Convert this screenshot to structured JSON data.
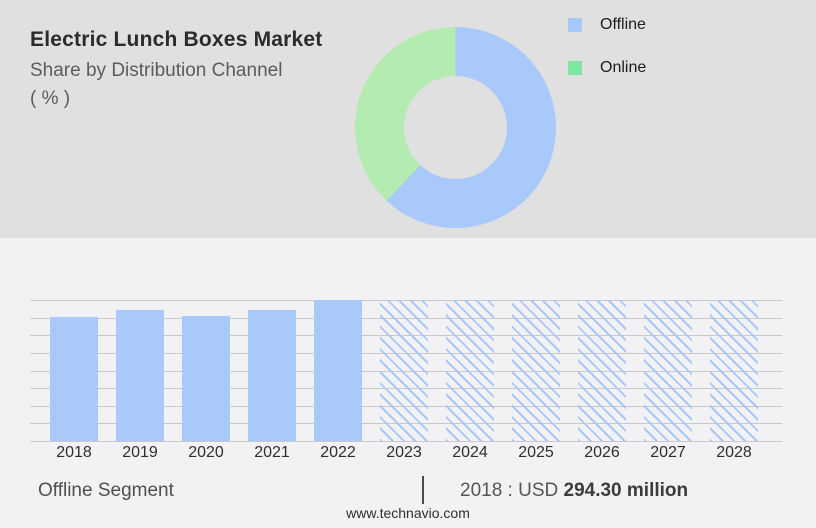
{
  "header": {
    "title": "Electric Lunch Boxes Market",
    "subtitle": "Share by Distribution Channel",
    "subtitle_unit": "( % )"
  },
  "colors": {
    "offline": "#a9c9fb",
    "offline_legend": "#a8c8fb",
    "online_donut": "#b4ebb1",
    "online_legend": "#7ce89e",
    "hatch": "#a9c8f8",
    "gridline": "#c9c9c9",
    "top_bg": "#e0e0e0",
    "bottom_bg": "#f2f2f4"
  },
  "chart_data": [
    {
      "type": "pie",
      "title": "Share by Distribution Channel ( % )",
      "labels": [
        "Offline",
        "Online"
      ],
      "values": [
        62,
        38
      ],
      "legend_position": "right",
      "donut": true
    },
    {
      "type": "bar",
      "categories": [
        "2018",
        "2019",
        "2020",
        "2021",
        "2022",
        "2023",
        "2024",
        "2025",
        "2026",
        "2027",
        "2028"
      ],
      "values": [
        294.3,
        312,
        296,
        312,
        334,
        334,
        334,
        334,
        334,
        334,
        334
      ],
      "forecast_start": "2023",
      "ylim": [
        0,
        336
      ],
      "grid": true,
      "annotation": "2018 : USD 294.30 million",
      "series_name": "Offline Segment"
    }
  ],
  "footer": {
    "segment_label": "Offline Segment",
    "divider": "|",
    "stat_prefix": "2018 : USD ",
    "stat_value": "294.30 million",
    "website": "www.technavio.com"
  }
}
